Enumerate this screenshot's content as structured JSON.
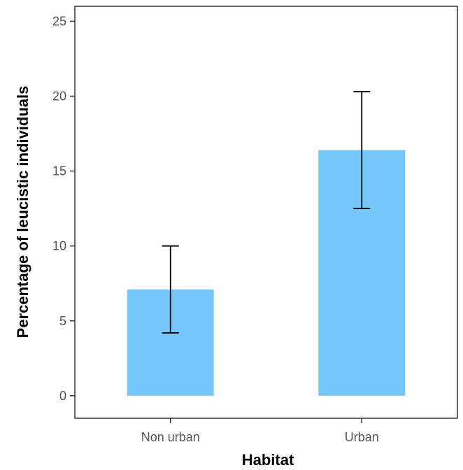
{
  "chart_data": {
    "type": "bar",
    "xlabel": "Habitat",
    "ylabel": "Percentage of leucistic individuals",
    "categories": [
      "Non urban",
      "Urban"
    ],
    "values": [
      7.1,
      16.4
    ],
    "error_low": [
      4.2,
      12.5
    ],
    "error_high": [
      10.0,
      20.3
    ],
    "ylim": [
      -1.5,
      26
    ],
    "yticks": [
      "0",
      "5",
      "10",
      "15",
      "20",
      "25"
    ],
    "ytick_values": [
      0,
      5,
      10,
      15,
      20,
      25
    ],
    "grid": false,
    "bar_color": "#76c8fa",
    "error_color": "#000000"
  }
}
